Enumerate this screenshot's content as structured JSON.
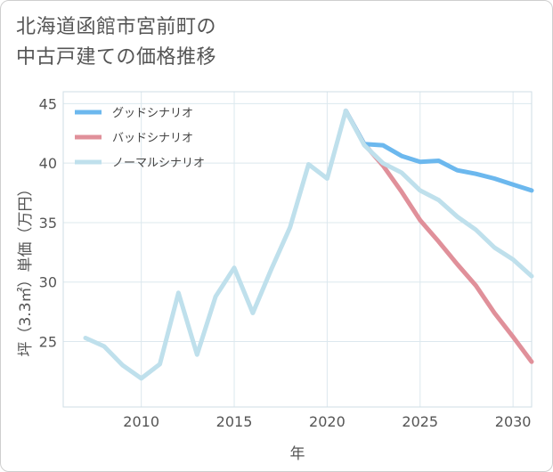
{
  "chart_data": {
    "type": "line",
    "title_lines": [
      "北海道函館市宮前町の",
      "中古戸建ての価格推移"
    ],
    "xlabel": "年",
    "ylabel": "坪（3.3㎡）単価（万円）",
    "xlim": [
      2005.8,
      2031
    ],
    "ylim": [
      19.5,
      46
    ],
    "x_ticks": [
      2010,
      2015,
      2020,
      2025,
      2030
    ],
    "y_ticks": [
      25,
      30,
      35,
      40,
      45
    ],
    "grid": true,
    "legend_position": "top-left",
    "series": [
      {
        "name": "グッドシナリオ",
        "color": "#6cb8ee",
        "x": [
          2021,
          2022,
          2023,
          2024,
          2025,
          2026,
          2027,
          2028,
          2029,
          2030,
          2031
        ],
        "y": [
          44.4,
          41.6,
          41.5,
          40.6,
          40.1,
          40.2,
          39.4,
          39.1,
          38.7,
          38.2,
          37.7
        ]
      },
      {
        "name": "バッドシナリオ",
        "color": "#e0909a",
        "x": [
          2021,
          2022,
          2023,
          2024,
          2025,
          2026,
          2027,
          2028,
          2029,
          2030,
          2031
        ],
        "y": [
          44.4,
          41.6,
          39.8,
          37.6,
          35.2,
          33.4,
          31.5,
          29.7,
          27.4,
          25.4,
          23.3
        ]
      },
      {
        "name": "ノーマルシナリオ",
        "color": "#bfe0ec",
        "x": [
          2007,
          2008,
          2009,
          2010,
          2011,
          2012,
          2013,
          2014,
          2015,
          2016,
          2017,
          2018,
          2019,
          2020,
          2021,
          2022,
          2023,
          2024,
          2025,
          2026,
          2027,
          2028,
          2029,
          2030,
          2031
        ],
        "y": [
          25.3,
          24.6,
          23.0,
          21.9,
          23.1,
          29.1,
          23.9,
          28.8,
          31.2,
          27.4,
          31.1,
          34.6,
          39.9,
          38.7,
          44.4,
          41.5,
          40.0,
          39.2,
          37.7,
          36.9,
          35.5,
          34.4,
          32.9,
          31.9,
          30.5
        ]
      }
    ]
  }
}
